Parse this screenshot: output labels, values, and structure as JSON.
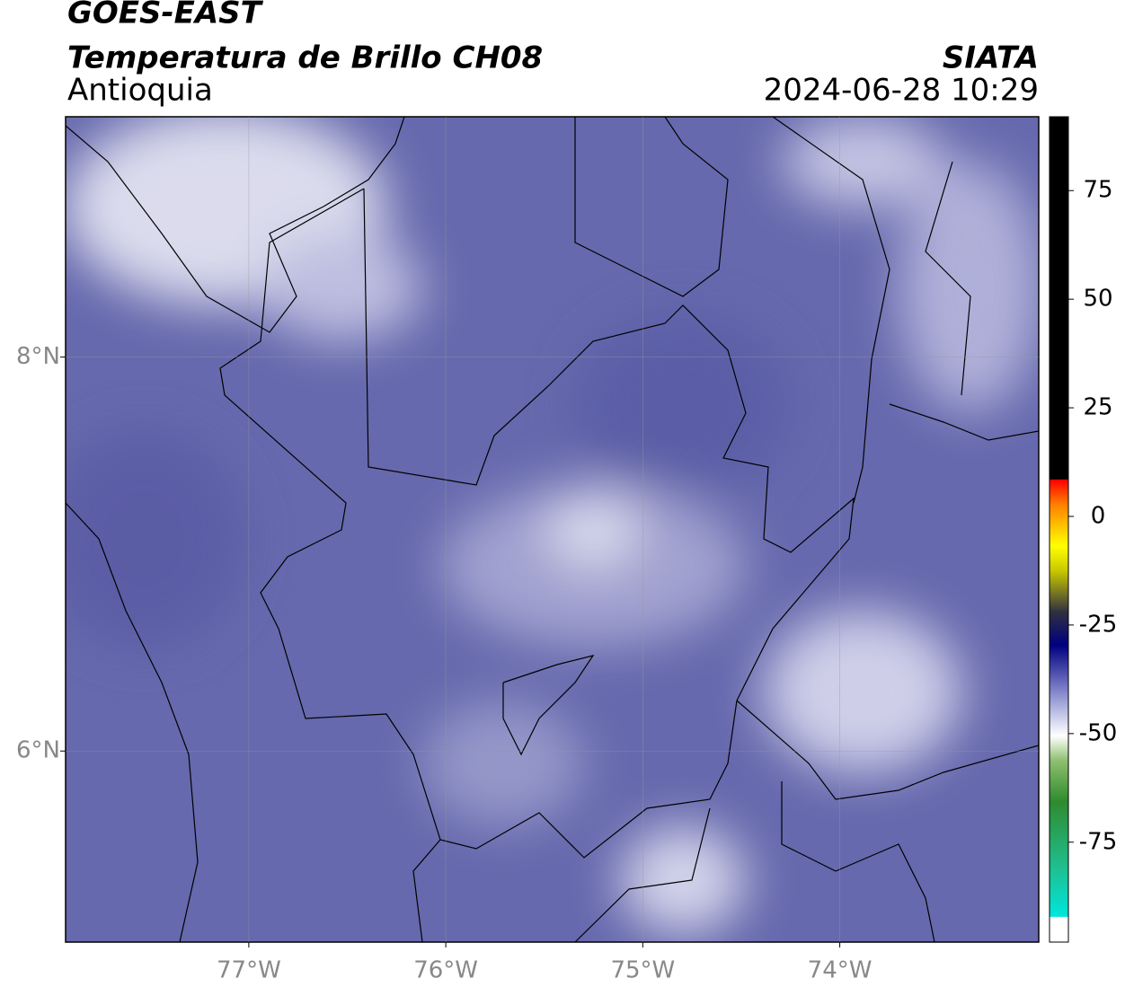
{
  "header": {
    "title": "GOES-EAST",
    "subtitle": "Temperatura de Brillo CH08",
    "region": "Antioquia",
    "source": "SIATA",
    "timestamp": "2024-06-28 10:29"
  },
  "map": {
    "xlim": [
      -77.93,
      -72.99
    ],
    "ylim": [
      5.03,
      9.22
    ],
    "xticks": [
      {
        "value": -77,
        "label": "77°W"
      },
      {
        "value": -76,
        "label": "76°W"
      },
      {
        "value": -75,
        "label": "75°W"
      },
      {
        "value": -74,
        "label": "74°W"
      }
    ],
    "yticks": [
      {
        "value": 6,
        "label": "6°N"
      },
      {
        "value": 8,
        "label": "8°N"
      }
    ],
    "grid": true
  },
  "colorbar": {
    "lim": [
      -98,
      92
    ],
    "ticks": [
      -75,
      -50,
      -25,
      0,
      25,
      50,
      75
    ]
  }
}
